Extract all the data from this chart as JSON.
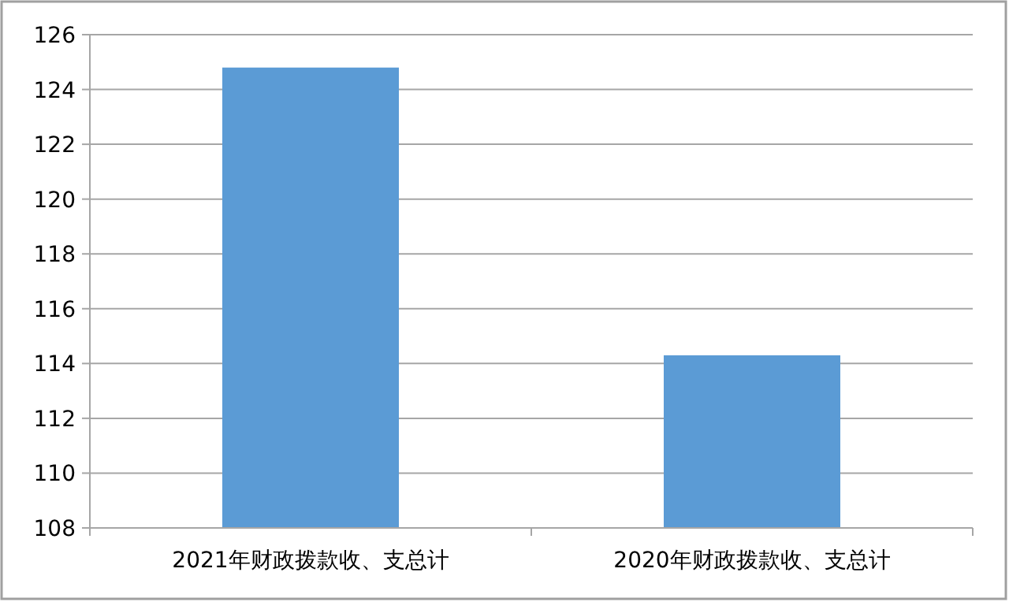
{
  "chart_data": {
    "type": "bar",
    "categories": [
      "2021年财政拨款收、支总计",
      "2020年财政拨款收、支总计"
    ],
    "values": [
      124.8,
      114.3
    ],
    "color": "#5b9bd5",
    "ylim": [
      108,
      126
    ],
    "yticks": [
      108,
      110,
      112,
      114,
      116,
      118,
      120,
      122,
      124,
      126
    ],
    "grid": "y"
  }
}
